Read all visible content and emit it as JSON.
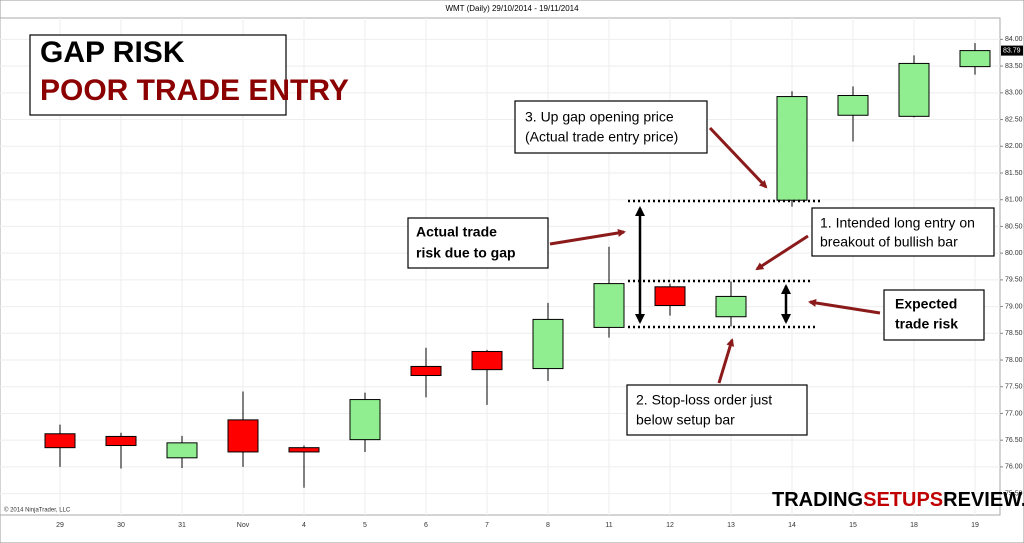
{
  "chart_data": {
    "type": "candlestick",
    "title": "WMT (Daily)  29/10/2014 - 19/11/2014",
    "copyright": "© 2014 NinjaTrader, LLC",
    "categories": [
      "29",
      "30",
      "31",
      "Nov",
      "4",
      "5",
      "6",
      "7",
      "8",
      "11",
      "12",
      "13",
      "14",
      "15",
      "18",
      "19"
    ],
    "open": [
      76.62,
      76.57,
      76.17,
      76.88,
      76.36,
      76.51,
      77.88,
      78.16,
      77.84,
      78.61,
      79.37,
      78.81,
      80.99,
      82.58,
      82.56,
      83.49
    ],
    "high": [
      76.79,
      76.64,
      76.58,
      77.41,
      76.4,
      77.39,
      78.23,
      78.19,
      79.07,
      80.12,
      79.43,
      79.47,
      83.03,
      83.12,
      83.7,
      83.93
    ],
    "low": [
      76.0,
      75.97,
      75.98,
      76.0,
      75.61,
      76.28,
      77.3,
      77.16,
      77.61,
      78.42,
      78.83,
      78.63,
      80.87,
      82.09,
      82.54,
      83.34
    ],
    "close": [
      76.36,
      76.4,
      76.45,
      76.28,
      76.28,
      77.26,
      77.71,
      77.82,
      78.76,
      79.43,
      79.02,
      79.19,
      82.93,
      82.95,
      83.55,
      83.79
    ],
    "up_color": "#90ee90",
    "down_color": "#ff0000",
    "last_price": 83.79,
    "ylim": [
      75.1,
      84.4
    ],
    "yticks": [
      {
        "value": 75.5,
        "label": "75.50"
      },
      {
        "value": 76,
        "label": "76.00"
      },
      {
        "value": 76.5,
        "label": "76.50"
      },
      {
        "value": 77,
        "label": "77.00"
      },
      {
        "value": 77.5,
        "label": "77.50"
      },
      {
        "value": 78,
        "label": "78.00"
      },
      {
        "value": 78.5,
        "label": "78.50"
      },
      {
        "value": 79,
        "label": "79.00"
      },
      {
        "value": 79.5,
        "label": "79.50"
      },
      {
        "value": 80,
        "label": "80.00"
      },
      {
        "value": 80.5,
        "label": "80.50"
      },
      {
        "value": 81,
        "label": "81.00"
      },
      {
        "value": 81.5,
        "label": "81.50"
      },
      {
        "value": 82,
        "label": "82.00"
      },
      {
        "value": 82.5,
        "label": "82.50"
      },
      {
        "value": 83,
        "label": "83.00"
      },
      {
        "value": 83.5,
        "label": "83.50"
      },
      {
        "value": 84,
        "label": "84.00"
      }
    ],
    "grid": true,
    "headline": [
      "GAP RISK",
      "POOR TRADE ENTRY"
    ],
    "annotations": {
      "gap_price": [
        "3. Up gap opening price",
        "(Actual trade entry price)"
      ],
      "actual_risk": [
        "Actual trade",
        "risk due to gap"
      ],
      "intended_entry": [
        "1. Intended long entry on",
        "breakout of bullish  bar"
      ],
      "expected_risk": [
        "Expected",
        "trade risk"
      ],
      "stop_loss": [
        "2. Stop-loss order just",
        "below setup bar"
      ]
    },
    "watermark": [
      "TRADING",
      "SETUPS",
      "REVIEW.COM"
    ]
  }
}
